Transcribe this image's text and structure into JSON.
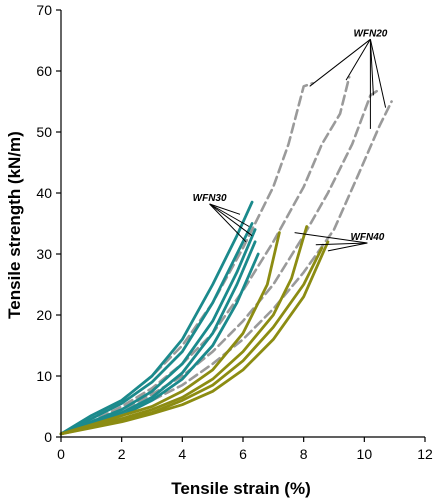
{
  "chart_data": {
    "type": "line",
    "xlabel": "Tensile strain (%)",
    "ylabel": "Tensile strength (kN/m)",
    "xlim": [
      0,
      12
    ],
    "ylim": [
      0,
      70
    ],
    "xticks": [
      0,
      2,
      4,
      6,
      8,
      10,
      12
    ],
    "yticks": [
      0,
      10,
      20,
      30,
      40,
      50,
      60,
      70
    ],
    "grid": false,
    "series": [
      {
        "name": "WFN20",
        "color": "#9a9a9a",
        "dash": "dashed",
        "curves": [
          [
            [
              0,
              0.5
            ],
            [
              1,
              3
            ],
            [
              2,
              6
            ],
            [
              3,
              10
            ],
            [
              4,
              15
            ],
            [
              5,
              22
            ],
            [
              6,
              31
            ],
            [
              7,
              41
            ],
            [
              7.5,
              48
            ],
            [
              8,
              57.5
            ],
            [
              8.3,
              58
            ]
          ],
          [
            [
              0,
              0.5
            ],
            [
              1,
              2.5
            ],
            [
              2,
              5
            ],
            [
              3,
              8
            ],
            [
              4,
              12
            ],
            [
              5,
              17
            ],
            [
              6,
              24
            ],
            [
              7,
              32
            ],
            [
              8,
              41
            ],
            [
              8.6,
              48
            ],
            [
              9.2,
              53
            ],
            [
              9.5,
              59
            ]
          ],
          [
            [
              0,
              0.5
            ],
            [
              1,
              2.3
            ],
            [
              2,
              4.5
            ],
            [
              3,
              7
            ],
            [
              4,
              10
            ],
            [
              5,
              14
            ],
            [
              6,
              19
            ],
            [
              7,
              25
            ],
            [
              8,
              33
            ],
            [
              8.8,
              40
            ],
            [
              9.6,
              48
            ],
            [
              10.2,
              56
            ],
            [
              10.5,
              57
            ]
          ],
          [
            [
              0,
              0.5
            ],
            [
              1,
              2.1
            ],
            [
              2,
              4
            ],
            [
              3,
              6
            ],
            [
              4,
              8.5
            ],
            [
              5,
              12
            ],
            [
              6,
              16
            ],
            [
              7,
              21
            ],
            [
              8,
              27
            ],
            [
              9,
              34
            ],
            [
              9.8,
              43
            ],
            [
              10.5,
              51
            ],
            [
              10.9,
              55
            ]
          ]
        ]
      },
      {
        "name": "WFN30",
        "color": "#1b8a8c",
        "dash": "solid",
        "curves": [
          [
            [
              0,
              0.5
            ],
            [
              1,
              3.5
            ],
            [
              2,
              6
            ],
            [
              3,
              10
            ],
            [
              4,
              16
            ],
            [
              5,
              25
            ],
            [
              5.8,
              33
            ],
            [
              6.3,
              38.5
            ]
          ],
          [
            [
              0,
              0.5
            ],
            [
              1,
              3
            ],
            [
              2,
              5.5
            ],
            [
              3,
              9
            ],
            [
              4,
              14
            ],
            [
              5,
              22
            ],
            [
              5.8,
              30
            ],
            [
              6.3,
              35
            ]
          ],
          [
            [
              0,
              0.5
            ],
            [
              1,
              2.5
            ],
            [
              2,
              4.5
            ],
            [
              3,
              7.5
            ],
            [
              4,
              12
            ],
            [
              5,
              19
            ],
            [
              5.8,
              27
            ],
            [
              6.4,
              34
            ]
          ],
          [
            [
              0,
              0.5
            ],
            [
              1,
              2.2
            ],
            [
              2,
              4
            ],
            [
              3,
              6.5
            ],
            [
              4,
              10.5
            ],
            [
              5,
              17
            ],
            [
              5.8,
              25
            ],
            [
              6.4,
              32
            ]
          ],
          [
            [
              0,
              0.5
            ],
            [
              1,
              2
            ],
            [
              2,
              3.5
            ],
            [
              3,
              6
            ],
            [
              4,
              9.5
            ],
            [
              5,
              15
            ],
            [
              5.8,
              22
            ],
            [
              6.5,
              30
            ]
          ]
        ]
      },
      {
        "name": "WFN40",
        "color": "#8c8c12",
        "dash": "solid",
        "curves": [
          [
            [
              0,
              0.5
            ],
            [
              1,
              2
            ],
            [
              2,
              3.5
            ],
            [
              3,
              5
            ],
            [
              4,
              7.5
            ],
            [
              5,
              11
            ],
            [
              6,
              17
            ],
            [
              6.8,
              25
            ],
            [
              7.2,
              33.5
            ]
          ],
          [
            [
              0,
              0.5
            ],
            [
              1,
              1.8
            ],
            [
              2,
              3
            ],
            [
              3,
              4.5
            ],
            [
              4,
              6.5
            ],
            [
              5,
              9.5
            ],
            [
              6,
              14
            ],
            [
              7,
              20
            ],
            [
              7.6,
              26
            ],
            [
              8.1,
              34.5
            ]
          ],
          [
            [
              0,
              0.5
            ],
            [
              1,
              1.6
            ],
            [
              2,
              2.8
            ],
            [
              3,
              4
            ],
            [
              4,
              6
            ],
            [
              5,
              8.5
            ],
            [
              6,
              12.5
            ],
            [
              7,
              18
            ],
            [
              8,
              25
            ],
            [
              8.6,
              31
            ]
          ],
          [
            [
              0,
              0.5
            ],
            [
              1,
              1.5
            ],
            [
              2,
              2.5
            ],
            [
              3,
              3.8
            ],
            [
              4,
              5.3
            ],
            [
              5,
              7.5
            ],
            [
              6,
              11
            ],
            [
              7,
              16
            ],
            [
              8,
              23
            ],
            [
              8.8,
              32
            ]
          ]
        ]
      }
    ],
    "annotations": [
      {
        "text": "WFN20",
        "anchor": [
          10.2,
          65.2
        ],
        "targets": [
          [
            8.2,
            57.5
          ],
          [
            9.4,
            58.5
          ],
          [
            10.3,
            56
          ],
          [
            10.7,
            54
          ],
          [
            10.2,
            50.5
          ]
        ]
      },
      {
        "text": "WFN30",
        "anchor": [
          4.9,
          38.2
        ],
        "targets": [
          [
            5.9,
            36.5
          ],
          [
            6.2,
            34.5
          ],
          [
            6.3,
            33
          ],
          [
            6.1,
            32
          ]
        ]
      },
      {
        "text": "WFN40",
        "anchor": [
          10.1,
          31.8
        ],
        "targets": [
          [
            7.7,
            33.5
          ],
          [
            8.4,
            31.5
          ],
          [
            8.8,
            30.5
          ]
        ]
      }
    ]
  }
}
